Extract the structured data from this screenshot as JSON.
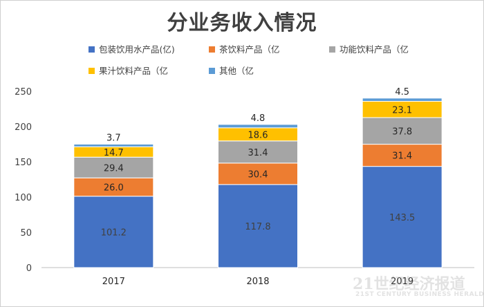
{
  "chart_data": {
    "type": "bar",
    "stacked": true,
    "title": "分业务收入情况",
    "categories": [
      "2017",
      "2018",
      "2019"
    ],
    "series": [
      {
        "name": "包装饮用水产品(亿)",
        "values": [
          101.2,
          117.8,
          143.5
        ],
        "color": "#4472c4",
        "label_color": "#404040"
      },
      {
        "name": "茶饮料产品（亿",
        "values": [
          26.0,
          30.4,
          31.4
        ],
        "color": "#ed7d31",
        "label_color": "#262626"
      },
      {
        "name": "功能饮料产品（亿",
        "values": [
          29.4,
          31.4,
          37.8
        ],
        "color": "#a5a5a5",
        "label_color": "#262626"
      },
      {
        "name": "果汁饮料产品（亿",
        "values": [
          14.7,
          18.6,
          23.1
        ],
        "color": "#ffc000",
        "label_color": "#262626"
      },
      {
        "name": "其他（亿",
        "values": [
          3.7,
          4.8,
          4.5
        ],
        "color": "#5b9bd5",
        "label_color": "#262626"
      }
    ],
    "value_labels": [
      [
        "101.2",
        "117.8",
        "143.5"
      ],
      [
        "26.0",
        "30.4",
        "31.4"
      ],
      [
        "29.4",
        "31.4",
        "37.8"
      ],
      [
        "14.7",
        "18.6",
        "23.1"
      ],
      [
        "3.7",
        "4.8",
        "4.5"
      ]
    ],
    "ylim": [
      0,
      250
    ],
    "yticks": [
      0,
      50,
      100,
      150,
      200,
      250
    ],
    "xlabel": "",
    "ylabel": "",
    "grid": false,
    "legend_position": "top"
  },
  "watermark": {
    "main": "21世纪经济报道",
    "sub": "21ST CENTURY BUSINESS HERALD"
  }
}
